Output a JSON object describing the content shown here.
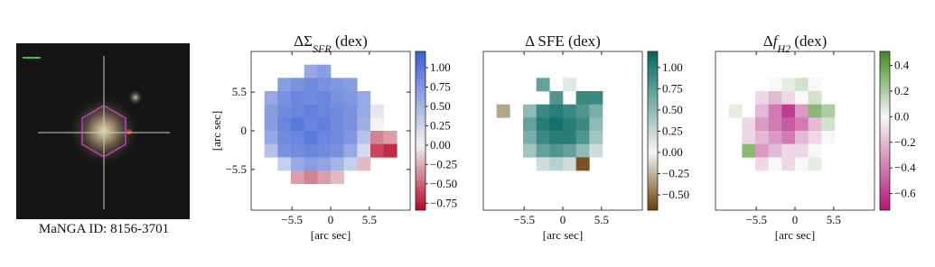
{
  "image_caption": "MaNGA ID: 8156-3701",
  "chart_data": [
    {
      "type": "heatmap",
      "title": [
        {
          "text": "ΔΣ"
        },
        {
          "text": "SFR",
          "sub": true
        },
        {
          "text": " (dex)"
        }
      ],
      "xlabel": "[arc sec]",
      "ylabel": "[arc sec]",
      "xlim": [
        -11.3,
        11.3
      ],
      "ylim": [
        -11.3,
        11.3
      ],
      "xticks": [
        {
          "value": -5.5,
          "label": "−5.5"
        },
        0,
        5.5
      ],
      "yticks": [
        5.5,
        0,
        {
          "value": -5.5,
          "label": "−5.5"
        }
      ],
      "colorbar": {
        "lim": [
          -0.84,
          1.21
        ],
        "colors": [
          "#b40426",
          "#f2f2f2",
          "#3b5fd6"
        ],
        "ticks": [
          {
            "value": 1,
            "label": "1.00"
          },
          0.75,
          {
            "value": 0.5,
            "label": "0.50"
          },
          0.25,
          {
            "value": 0,
            "label": "0.00"
          },
          {
            "value": -0.25,
            "label": "−0.25"
          },
          {
            "value": -0.5,
            "label": "−0.50"
          },
          {
            "value": -0.75,
            "label": "−0.75"
          }
        ]
      },
      "values": [
        [
          null,
          null,
          null,
          null,
          null,
          null,
          null,
          null,
          null,
          null,
          null,
          null
        ],
        [
          null,
          null,
          null,
          null,
          0.6,
          0.7,
          null,
          null,
          null,
          null,
          null,
          null
        ],
        [
          null,
          null,
          0.7,
          0.8,
          0.85,
          0.8,
          0.75,
          0.7,
          null,
          null,
          null,
          null
        ],
        [
          null,
          0.6,
          0.8,
          0.9,
          0.85,
          0.9,
          0.8,
          0.75,
          0.6,
          null,
          null,
          null
        ],
        [
          null,
          0.7,
          0.85,
          0.9,
          0.95,
          0.9,
          0.85,
          0.8,
          0.6,
          0.1,
          null,
          null
        ],
        [
          null,
          0.7,
          0.9,
          1.0,
          0.9,
          0.95,
          0.85,
          0.8,
          0.55,
          0.0,
          null,
          null
        ],
        [
          null,
          0.6,
          0.85,
          0.9,
          1.0,
          0.9,
          0.85,
          0.75,
          0.4,
          -0.4,
          -0.3,
          null
        ],
        [
          null,
          0.4,
          0.8,
          0.85,
          0.9,
          0.85,
          0.8,
          0.6,
          0.2,
          -0.6,
          -0.7,
          null
        ],
        [
          null,
          null,
          0.3,
          0.6,
          0.7,
          0.65,
          0.5,
          0.3,
          -0.2,
          null,
          null,
          null
        ],
        [
          null,
          null,
          null,
          -0.3,
          -0.4,
          -0.3,
          -0.2,
          null,
          null,
          null,
          null,
          null
        ],
        [
          null,
          null,
          null,
          null,
          null,
          null,
          null,
          null,
          null,
          null,
          null,
          null
        ],
        [
          null,
          null,
          null,
          null,
          null,
          null,
          null,
          null,
          null,
          null,
          null,
          null
        ]
      ]
    },
    {
      "type": "heatmap",
      "title": [
        {
          "text": "Δ SFE (dex)"
        }
      ],
      "xlabel": "[arc sec]",
      "xlim": [
        -11.3,
        11.3
      ],
      "ylim": [
        -11.3,
        11.3
      ],
      "xticks": [
        {
          "value": -5.5,
          "label": "−5.5"
        },
        0,
        5.5
      ],
      "colorbar": {
        "lim": [
          -0.68,
          1.19
        ],
        "colors": [
          "#6b3d07",
          "#f5f5f5",
          "#01665e"
        ],
        "ticks": [
          {
            "value": 1,
            "label": "1.00"
          },
          0.75,
          {
            "value": 0.5,
            "label": "0.50"
          },
          0.25,
          {
            "value": 0,
            "label": "0.00"
          },
          {
            "value": -0.25,
            "label": "−0.25"
          },
          {
            "value": -0.5,
            "label": "−0.50"
          }
        ]
      },
      "values": [
        [
          null,
          null,
          null,
          null,
          null,
          null,
          null,
          null,
          null,
          null,
          null,
          null
        ],
        [
          null,
          null,
          null,
          null,
          null,
          null,
          null,
          null,
          null,
          null,
          null,
          null
        ],
        [
          null,
          null,
          null,
          null,
          0.7,
          null,
          0.1,
          null,
          null,
          null,
          null,
          null
        ],
        [
          null,
          null,
          null,
          null,
          null,
          0.8,
          null,
          0.9,
          0.9,
          null,
          null,
          null
        ],
        [
          null,
          -0.3,
          null,
          0.5,
          0.9,
          1.0,
          0.9,
          0.8,
          0.6,
          null,
          null,
          null
        ],
        [
          null,
          null,
          null,
          0.7,
          1.0,
          1.1,
          1.0,
          0.9,
          0.5,
          null,
          null,
          null
        ],
        [
          null,
          null,
          null,
          0.6,
          0.9,
          1.0,
          1.0,
          0.8,
          0.4,
          null,
          null,
          null
        ],
        [
          null,
          null,
          null,
          0.4,
          0.7,
          0.8,
          0.7,
          0.5,
          0.2,
          null,
          null,
          null
        ],
        [
          null,
          null,
          null,
          null,
          0.2,
          0.3,
          0.2,
          -0.6,
          null,
          null,
          null,
          null
        ],
        [
          null,
          null,
          null,
          null,
          null,
          null,
          null,
          null,
          null,
          null,
          null,
          null
        ],
        [
          null,
          null,
          null,
          null,
          null,
          null,
          null,
          null,
          null,
          null,
          null,
          null
        ],
        [
          null,
          null,
          null,
          null,
          null,
          null,
          null,
          null,
          null,
          null,
          null,
          null
        ]
      ]
    },
    {
      "type": "heatmap",
      "title": [
        {
          "text": "Δ"
        },
        {
          "text": "f",
          "italic": true
        },
        {
          "text": "H2",
          "sub": true
        },
        {
          "text": " (dex)"
        }
      ],
      "xlabel": "[arc sec]",
      "xlim": [
        -11.3,
        11.3
      ],
      "ylim": [
        -11.3,
        11.3
      ],
      "xticks": [
        {
          "value": -5.5,
          "label": "−5.5"
        },
        0,
        5.5
      ],
      "colorbar": {
        "lim": [
          -0.73,
          0.51
        ],
        "colors": [
          "#b3157a",
          "#f7f7f7",
          "#3d8c1a"
        ],
        "ticks": [
          0.4,
          0.2,
          {
            "value": 0,
            "label": "0.0"
          },
          {
            "value": -0.2,
            "label": "−0.2"
          },
          {
            "value": -0.4,
            "label": "−0.4"
          },
          {
            "value": -0.6,
            "label": "−0.6"
          }
        ]
      },
      "values": [
        [
          null,
          null,
          null,
          null,
          null,
          null,
          null,
          null,
          null,
          null,
          null,
          null
        ],
        [
          null,
          null,
          null,
          null,
          null,
          null,
          null,
          null,
          null,
          null,
          null,
          null
        ],
        [
          null,
          null,
          null,
          null,
          0.0,
          0.05,
          0.1,
          0.0,
          null,
          null,
          null,
          null
        ],
        [
          null,
          null,
          null,
          -0.1,
          -0.2,
          -0.1,
          0.0,
          0.1,
          null,
          null,
          null,
          null
        ],
        [
          null,
          0.05,
          null,
          -0.2,
          -0.4,
          -0.6,
          -0.3,
          0.3,
          0.2,
          null,
          null,
          null
        ],
        [
          null,
          null,
          -0.1,
          -0.3,
          -0.4,
          -0.5,
          -0.4,
          -0.2,
          0.1,
          null,
          null,
          null
        ],
        [
          null,
          null,
          -0.1,
          -0.2,
          -0.3,
          -0.4,
          -0.2,
          -0.1,
          0.0,
          null,
          null,
          null
        ],
        [
          null,
          null,
          0.3,
          -0.3,
          -0.2,
          -0.1,
          -0.1,
          0.0,
          null,
          null,
          null,
          null
        ],
        [
          null,
          null,
          null,
          -0.1,
          0.0,
          -0.1,
          0.0,
          0.05,
          null,
          null,
          null,
          null
        ],
        [
          null,
          null,
          null,
          null,
          null,
          null,
          null,
          null,
          null,
          null,
          null,
          null
        ],
        [
          null,
          null,
          null,
          null,
          null,
          null,
          null,
          null,
          null,
          null,
          null,
          null
        ],
        [
          null,
          null,
          null,
          null,
          null,
          null,
          null,
          null,
          null,
          null,
          null,
          null
        ]
      ]
    }
  ]
}
